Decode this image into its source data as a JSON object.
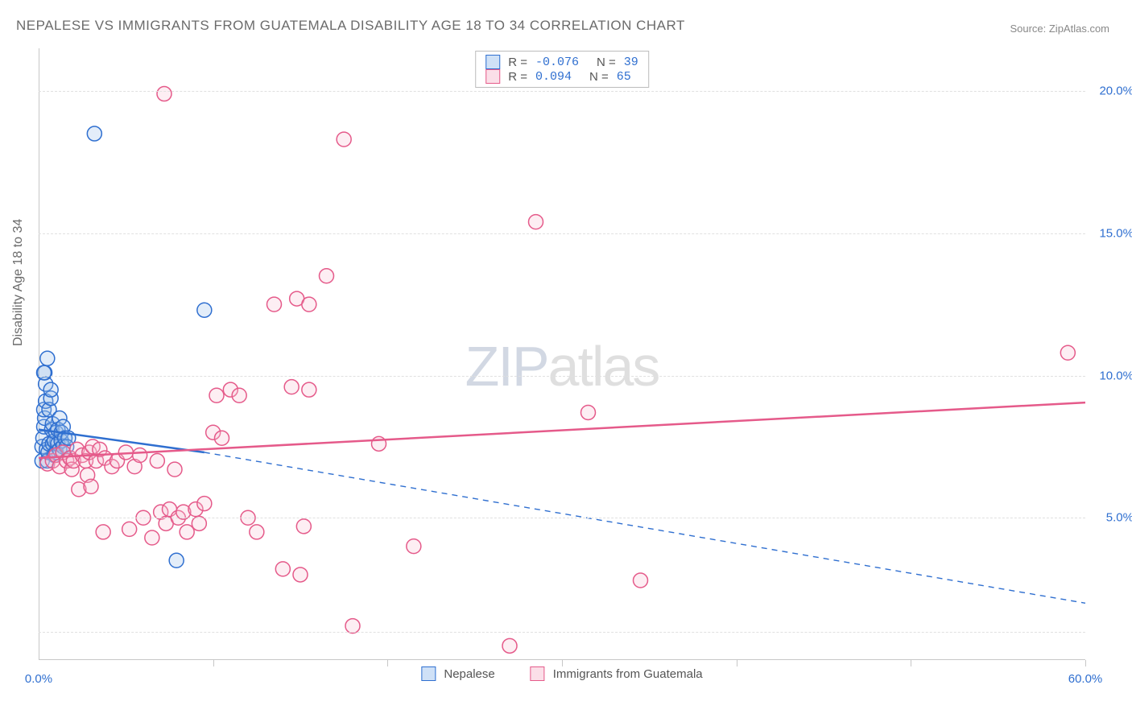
{
  "title": "NEPALESE VS IMMIGRANTS FROM GUATEMALA DISABILITY AGE 18 TO 34 CORRELATION CHART",
  "source": "Source: ZipAtlas.com",
  "ylabel": "Disability Age 18 to 34",
  "watermark_zip": "ZIP",
  "watermark_atlas": "atlas",
  "chart": {
    "type": "scatter",
    "background_color": "#ffffff",
    "grid_color": "#e0e0e0",
    "axis_color": "#c7c7c7",
    "tick_label_color": "#2f6fd0",
    "tick_fontsize": 15,
    "title_fontsize": 17,
    "ylabel_fontsize": 16,
    "xlim": [
      0,
      60
    ],
    "ylim": [
      0,
      21.5
    ],
    "x_ticks_major": [
      10,
      20,
      30,
      40,
      50,
      60
    ],
    "y_gridlines": [
      1.0,
      5,
      10,
      15,
      20
    ],
    "ytick_labels": [
      {
        "y": 20,
        "text": "20.0%"
      },
      {
        "y": 15,
        "text": "15.0%"
      },
      {
        "y": 10,
        "text": "10.0%"
      },
      {
        "y": 5,
        "text": "5.0%"
      }
    ],
    "xtick_labels": [
      {
        "x": 0,
        "text": "0.0%"
      },
      {
        "x": 60,
        "text": "60.0%"
      }
    ],
    "marker_radius": 9,
    "marker_stroke_width": 1.5,
    "marker_fill_opacity": 0.28,
    "series": [
      {
        "name": "Nepalese",
        "stroke_color": "#2f6fd0",
        "fill_color": "#9bc0eb",
        "legend_stroke": "#2f6fd0",
        "legend_fill": "#cfe1f7",
        "R": "-0.076",
        "N": "39",
        "trend_solid": {
          "x1": 0,
          "y1": 8.1,
          "x2": 9.5,
          "y2": 7.3,
          "width": 2.5
        },
        "trend_dashed": {
          "x1": 9.5,
          "y1": 7.3,
          "x2": 60,
          "y2": 2.0,
          "dash": "7,6",
          "width": 1.4
        },
        "points": [
          [
            0.2,
            7.0
          ],
          [
            0.2,
            7.5
          ],
          [
            0.25,
            7.8
          ],
          [
            0.3,
            8.2
          ],
          [
            0.35,
            8.5
          ],
          [
            0.3,
            8.8
          ],
          [
            0.4,
            9.1
          ],
          [
            0.4,
            9.7
          ],
          [
            0.35,
            10.1
          ],
          [
            0.3,
            10.1
          ],
          [
            0.5,
            10.6
          ],
          [
            0.45,
            7.4
          ],
          [
            0.5,
            7.0
          ],
          [
            0.55,
            7.3
          ],
          [
            0.6,
            7.6
          ],
          [
            0.6,
            8.8
          ],
          [
            0.7,
            9.2
          ],
          [
            0.7,
            9.5
          ],
          [
            0.75,
            8.1
          ],
          [
            0.8,
            7.6
          ],
          [
            0.8,
            8.3
          ],
          [
            0.9,
            7.2
          ],
          [
            0.9,
            7.7
          ],
          [
            1.0,
            8.0
          ],
          [
            1.0,
            7.3
          ],
          [
            1.1,
            7.6
          ],
          [
            1.1,
            8.1
          ],
          [
            1.2,
            7.4
          ],
          [
            1.2,
            8.5
          ],
          [
            1.3,
            7.7
          ],
          [
            1.3,
            8.0
          ],
          [
            1.4,
            7.5
          ],
          [
            1.4,
            8.2
          ],
          [
            1.5,
            7.8
          ],
          [
            1.6,
            7.5
          ],
          [
            1.7,
            7.8
          ],
          [
            3.2,
            18.5
          ],
          [
            7.9,
            3.5
          ],
          [
            9.5,
            12.3
          ]
        ]
      },
      {
        "name": "Immigrants from Guatemala",
        "stroke_color": "#e55a8a",
        "fill_color": "#f8c3d4",
        "legend_stroke": "#e55a8a",
        "legend_fill": "#fbdfe8",
        "R": "0.094",
        "N": "65",
        "trend_solid": {
          "x1": 0,
          "y1": 7.1,
          "x2": 60,
          "y2": 9.05,
          "width": 2.5
        },
        "trend_dashed": null,
        "points": [
          [
            0.5,
            6.9
          ],
          [
            0.8,
            7.0
          ],
          [
            1.0,
            7.2
          ],
          [
            1.2,
            6.8
          ],
          [
            1.4,
            7.3
          ],
          [
            1.6,
            7.0
          ],
          [
            1.8,
            7.1
          ],
          [
            1.9,
            6.7
          ],
          [
            2.0,
            7.0
          ],
          [
            2.2,
            7.4
          ],
          [
            2.3,
            6.0
          ],
          [
            2.5,
            7.2
          ],
          [
            2.7,
            7.0
          ],
          [
            2.8,
            6.5
          ],
          [
            2.9,
            7.3
          ],
          [
            3.0,
            6.1
          ],
          [
            3.1,
            7.5
          ],
          [
            3.3,
            7.0
          ],
          [
            3.5,
            7.4
          ],
          [
            3.7,
            4.5
          ],
          [
            3.8,
            7.1
          ],
          [
            4.2,
            6.8
          ],
          [
            4.5,
            7.0
          ],
          [
            5.0,
            7.3
          ],
          [
            5.2,
            4.6
          ],
          [
            5.5,
            6.8
          ],
          [
            5.8,
            7.2
          ],
          [
            6.0,
            5.0
          ],
          [
            6.5,
            4.3
          ],
          [
            6.8,
            7.0
          ],
          [
            7.0,
            5.2
          ],
          [
            7.2,
            19.9
          ],
          [
            7.3,
            4.8
          ],
          [
            7.5,
            5.3
          ],
          [
            7.8,
            6.7
          ],
          [
            8.0,
            5.0
          ],
          [
            8.3,
            5.2
          ],
          [
            8.5,
            4.5
          ],
          [
            9.0,
            5.3
          ],
          [
            9.2,
            4.8
          ],
          [
            9.5,
            5.5
          ],
          [
            10.0,
            8.0
          ],
          [
            10.2,
            9.3
          ],
          [
            10.5,
            7.8
          ],
          [
            11.0,
            9.5
          ],
          [
            11.5,
            9.3
          ],
          [
            12.0,
            5.0
          ],
          [
            12.5,
            4.5
          ],
          [
            13.5,
            12.5
          ],
          [
            14.0,
            3.2
          ],
          [
            14.5,
            9.6
          ],
          [
            14.8,
            12.7
          ],
          [
            15.0,
            3.0
          ],
          [
            15.2,
            4.7
          ],
          [
            15.5,
            9.5
          ],
          [
            15.5,
            12.5
          ],
          [
            16.5,
            13.5
          ],
          [
            17.5,
            18.3
          ],
          [
            18.0,
            1.2
          ],
          [
            19.5,
            7.6
          ],
          [
            21.5,
            4.0
          ],
          [
            27.0,
            0.5
          ],
          [
            28.5,
            15.4
          ],
          [
            31.5,
            8.7
          ],
          [
            34.5,
            2.8
          ],
          [
            59.0,
            10.8
          ]
        ]
      }
    ],
    "legend_bottom": [
      {
        "label": "Nepalese",
        "series": 0
      },
      {
        "label": "Immigrants from Guatemala",
        "series": 1
      }
    ]
  }
}
